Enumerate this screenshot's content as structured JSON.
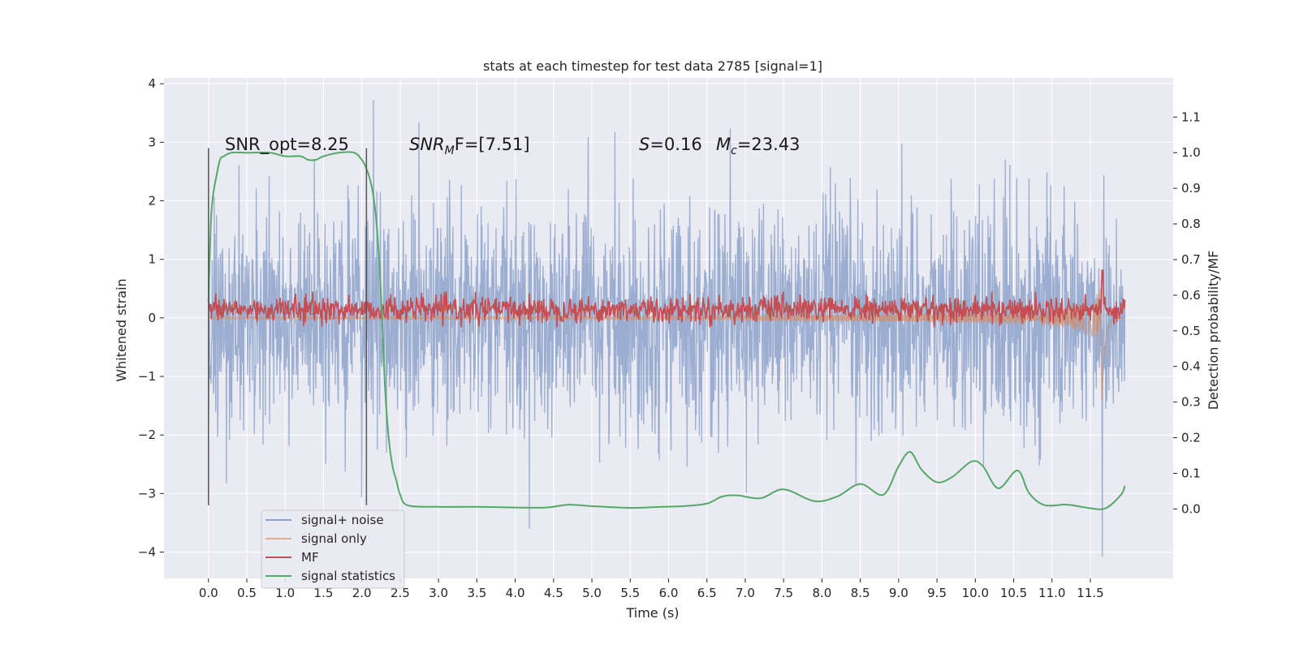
{
  "chart_data": {
    "type": "line",
    "title": "stats at each timestep for test data 2785 [signal=1]",
    "xlabel": "Time (s)",
    "ylabel": "Whitened strain",
    "y2label": "Detection probability/MF",
    "xlim": [
      -0.58,
      12.58
    ],
    "ylim": [
      -4.45,
      4.1
    ],
    "y2lim": [
      -0.195,
      1.21
    ],
    "xticks": [
      0.0,
      0.5,
      1.0,
      1.5,
      2.0,
      2.5,
      3.0,
      3.5,
      4.0,
      4.5,
      5.0,
      5.5,
      6.0,
      6.5,
      7.0,
      7.5,
      8.0,
      8.5,
      9.0,
      9.5,
      10.0,
      10.5,
      11.0,
      11.5
    ],
    "xtick_labels": [
      "0.0",
      "0.5",
      "1.0",
      "1.5",
      "2.0",
      "2.5",
      "3.0",
      "3.5",
      "4.0",
      "4.5",
      "5.0",
      "5.5",
      "6.0",
      "6.5",
      "7.0",
      "7.5",
      "8.0",
      "8.5",
      "9.0",
      "9.5",
      "10.0",
      "10.5",
      "11.0",
      "11.5"
    ],
    "yticks": [
      -4,
      -3,
      -2,
      -1,
      0,
      1,
      2,
      3,
      4
    ],
    "ytick_labels": [
      "−4",
      "−3",
      "−2",
      "−1",
      "0",
      "1",
      "2",
      "3",
      "4"
    ],
    "y2ticks": [
      0.0,
      0.1,
      0.2,
      0.3,
      0.4,
      0.5,
      0.6,
      0.7,
      0.8,
      0.9,
      1.0,
      1.1
    ],
    "y2tick_labels": [
      "0.0",
      "0.1",
      "0.2",
      "0.3",
      "0.4",
      "0.5",
      "0.6",
      "0.7",
      "0.8",
      "0.9",
      "1.0",
      "1.1"
    ],
    "grid": true,
    "legend_position": "lower-left",
    "annotations": {
      "snr_opt": "SNR_opt=8.25",
      "snr_mf_italic": "SNR",
      "snr_mf_sub": "M",
      "snr_mf_rest": "F=[7.51]",
      "s_italic": "S",
      "s_rest": "=0.16",
      "mc_italic": "M",
      "mc_sub": "c",
      "mc_rest": "=23.43"
    },
    "vertical_lines": {
      "x": [
        0.0,
        2.06
      ],
      "y_range": [
        -3.2,
        2.9
      ]
    },
    "series": [
      {
        "name": "signal+ noise",
        "axis": "left",
        "color": "#4c72b0",
        "t_range": [
          0.0,
          11.95
        ],
        "envelope": {
          "typical_amplitude": 1.8,
          "max": 3.72,
          "min": -4.08
        }
      },
      {
        "name": "signal only",
        "axis": "left",
        "color": "#dd8452",
        "t_range": [
          0.0,
          11.95
        ],
        "chirp": {
          "peak_time": 11.65,
          "peak_max": 1.6,
          "peak_min": -1.6
        }
      },
      {
        "name": "MF",
        "axis": "right",
        "color": "#c44e52",
        "t_range": [
          0.0,
          11.95
        ],
        "band": [
          0.52,
          0.6
        ],
        "peak": {
          "x": 11.66,
          "y": 0.67
        }
      },
      {
        "name": "signal statistics",
        "axis": "right",
        "color": "#55a868",
        "x": [
          0.0,
          0.03,
          0.06,
          0.1,
          0.15,
          0.2,
          0.3,
          0.5,
          0.8,
          1.0,
          1.2,
          1.3,
          1.4,
          1.5,
          1.7,
          1.9,
          2.0,
          2.05,
          2.1,
          2.15,
          2.2,
          2.25,
          2.3,
          2.35,
          2.4,
          2.45,
          2.5,
          2.6,
          3.0,
          3.5,
          4.0,
          4.4,
          4.7,
          5.0,
          5.5,
          5.9,
          6.2,
          6.5,
          6.7,
          6.9,
          7.2,
          7.5,
          7.9,
          8.2,
          8.5,
          8.8,
          9.0,
          9.15,
          9.3,
          9.5,
          9.7,
          9.95,
          10.1,
          10.3,
          10.55,
          10.7,
          10.9,
          11.2,
          11.5,
          11.7,
          11.9,
          11.95
        ],
        "values": [
          0.58,
          0.8,
          0.88,
          0.93,
          0.98,
          0.99,
          1.0,
          1.0,
          1.0,
          0.99,
          0.99,
          0.98,
          0.98,
          0.99,
          1.0,
          1.0,
          0.98,
          0.96,
          0.93,
          0.88,
          0.78,
          0.6,
          0.35,
          0.2,
          0.12,
          0.08,
          0.04,
          0.01,
          0.006,
          0.006,
          0.004,
          0.004,
          0.012,
          0.008,
          0.003,
          0.006,
          0.008,
          0.015,
          0.035,
          0.038,
          0.03,
          0.055,
          0.022,
          0.035,
          0.07,
          0.04,
          0.12,
          0.16,
          0.11,
          0.075,
          0.09,
          0.133,
          0.12,
          0.058,
          0.108,
          0.045,
          0.011,
          0.012,
          0.002,
          0.002,
          0.04,
          0.065
        ]
      }
    ]
  }
}
